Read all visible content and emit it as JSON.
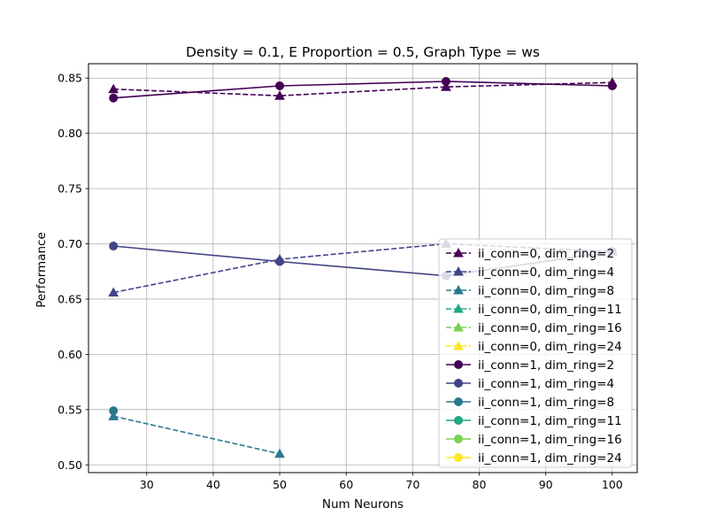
{
  "chart_data": {
    "type": "line",
    "title": "Density = 0.1, E Proportion = 0.5, Graph Type = ws",
    "xlabel": "Num Neurons",
    "ylabel": "Performance",
    "xlim": [
      21.25,
      103.75
    ],
    "ylim": [
      0.493,
      0.863
    ],
    "xticks": [
      30,
      40,
      50,
      60,
      70,
      80,
      90,
      100
    ],
    "yticks": [
      0.5,
      0.55,
      0.6,
      0.65,
      0.7,
      0.75,
      0.8,
      0.85
    ],
    "grid": true,
    "legend_position": "lower right",
    "series": [
      {
        "name": "ii_conn=0, dim_ring=2",
        "color": "#440154",
        "linestyle": "dashed",
        "marker": "triangle",
        "x": [
          25,
          50,
          75,
          100
        ],
        "y": [
          0.84,
          0.834,
          0.842,
          0.846
        ]
      },
      {
        "name": "ii_conn=0, dim_ring=4",
        "color": "#414487",
        "linestyle": "dashed",
        "marker": "triangle",
        "x": [
          25,
          50,
          75,
          100
        ],
        "y": [
          0.656,
          0.686,
          0.7,
          0.693
        ]
      },
      {
        "name": "ii_conn=0, dim_ring=8",
        "color": "#2a788e",
        "linestyle": "dashed",
        "marker": "triangle",
        "x": [
          25,
          50
        ],
        "y": [
          0.544,
          0.51
        ]
      },
      {
        "name": "ii_conn=0, dim_ring=11",
        "color": "#22a884",
        "linestyle": "dashed",
        "marker": "triangle",
        "x": [],
        "y": []
      },
      {
        "name": "ii_conn=0, dim_ring=16",
        "color": "#7ad151",
        "linestyle": "dashed",
        "marker": "triangle",
        "x": [],
        "y": []
      },
      {
        "name": "ii_conn=0, dim_ring=24",
        "color": "#fde725",
        "linestyle": "dashed",
        "marker": "triangle",
        "x": [],
        "y": []
      },
      {
        "name": "ii_conn=1, dim_ring=2",
        "color": "#440154",
        "linestyle": "solid",
        "marker": "circle",
        "x": [
          25,
          50,
          75,
          100
        ],
        "y": [
          0.832,
          0.843,
          0.847,
          0.843
        ]
      },
      {
        "name": "ii_conn=1, dim_ring=4",
        "color": "#414487",
        "linestyle": "solid",
        "marker": "circle",
        "x": [
          25,
          50,
          75,
          100
        ],
        "y": [
          0.698,
          0.684,
          0.671,
          0.693
        ]
      },
      {
        "name": "ii_conn=1, dim_ring=8",
        "color": "#2a788e",
        "linestyle": "solid",
        "marker": "circle",
        "x": [
          25
        ],
        "y": [
          0.549
        ]
      },
      {
        "name": "ii_conn=1, dim_ring=11",
        "color": "#22a884",
        "linestyle": "solid",
        "marker": "circle",
        "x": [],
        "y": []
      },
      {
        "name": "ii_conn=1, dim_ring=16",
        "color": "#7ad151",
        "linestyle": "solid",
        "marker": "circle",
        "x": [],
        "y": []
      },
      {
        "name": "ii_conn=1, dim_ring=24",
        "color": "#fde725",
        "linestyle": "solid",
        "marker": "circle",
        "x": [],
        "y": []
      }
    ]
  }
}
